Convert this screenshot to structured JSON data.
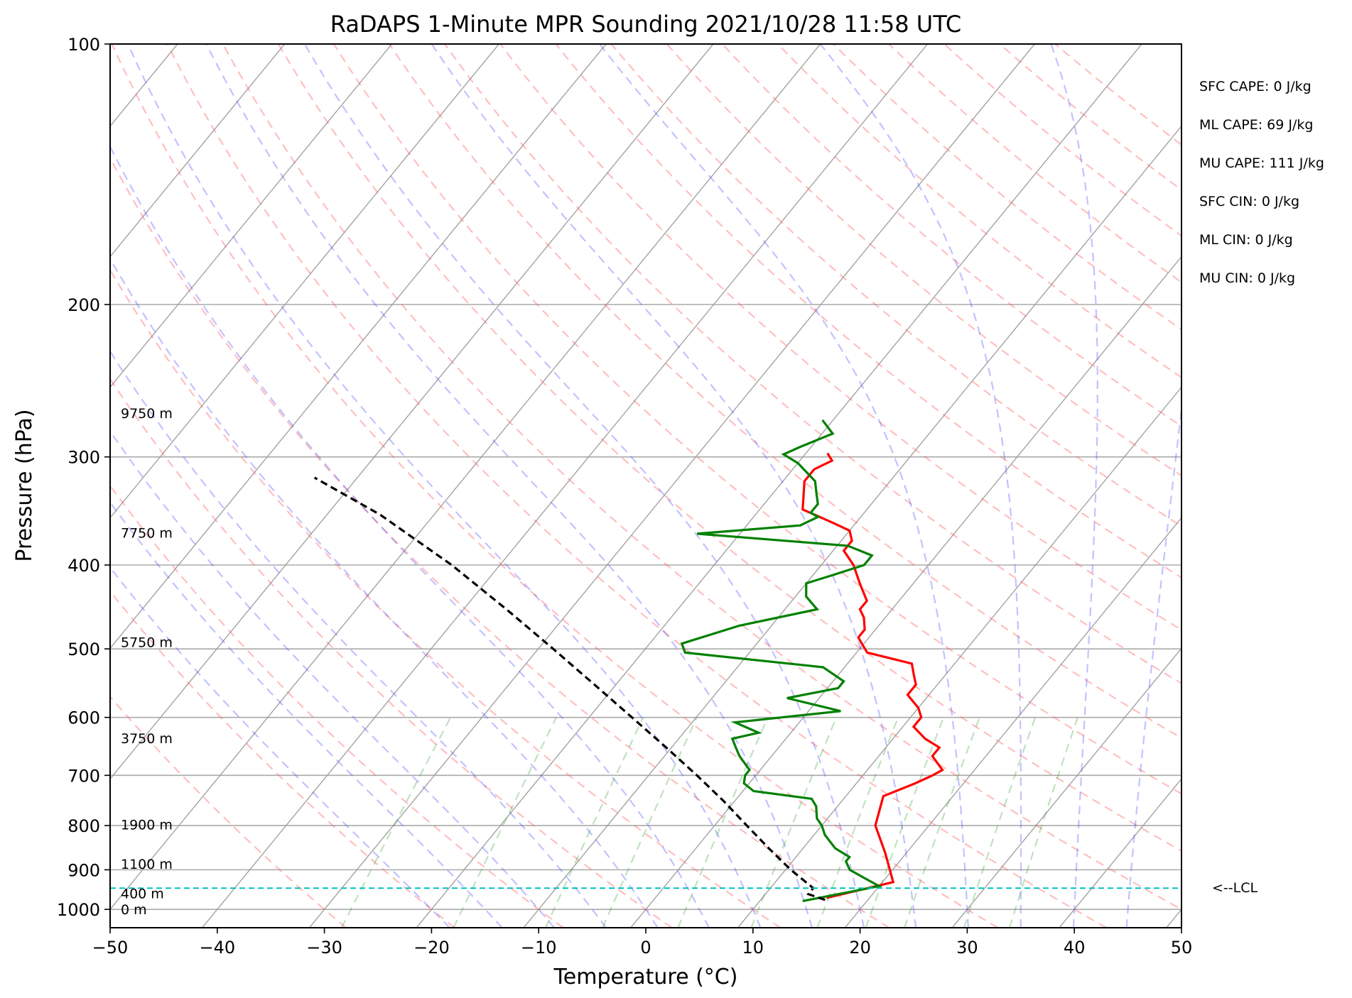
{
  "chart_data": {
    "type": "line",
    "title": "RaDAPS 1-Minute MPR Sounding 2021/10/28 11:58 UTC",
    "xlabel": "Temperature (°C)",
    "ylabel": "Pressure (hPa)",
    "xlim": [
      -50,
      50
    ],
    "ylim": [
      1050,
      100
    ],
    "y_scale": "log",
    "x_ticks": [
      -50,
      -40,
      -30,
      -20,
      -10,
      0,
      10,
      20,
      30,
      40,
      50
    ],
    "x_tick_labels": [
      "−50",
      "−40",
      "−30",
      "−20",
      "−10",
      "0",
      "10",
      "20",
      "30",
      "40",
      "50"
    ],
    "y_ticks": [
      100,
      200,
      300,
      400,
      500,
      600,
      700,
      800,
      900,
      1000
    ],
    "y_tick_labels": [
      "100",
      "200",
      "300",
      "400",
      "500",
      "600",
      "700",
      "800",
      "900",
      "1000"
    ],
    "grid": true,
    "skew": true,
    "series": [
      {
        "color": "#ff0000",
        "points": [
          [
            16,
            970
          ],
          [
            21,
            930
          ],
          [
            18,
            860
          ],
          [
            15,
            800
          ],
          [
            13.5,
            740
          ],
          [
            15.5,
            715
          ],
          [
            16.5,
            700
          ],
          [
            17,
            690
          ],
          [
            15,
            665
          ],
          [
            15,
            650
          ],
          [
            13,
            635
          ],
          [
            11,
            615
          ],
          [
            11,
            600
          ],
          [
            10,
            585
          ],
          [
            8,
            565
          ],
          [
            8,
            550
          ],
          [
            7,
            535
          ],
          [
            6,
            520
          ],
          [
            1,
            505
          ],
          [
            0,
            495
          ],
          [
            -1,
            485
          ],
          [
            -1,
            475
          ],
          [
            -2,
            460
          ],
          [
            -3,
            450
          ],
          [
            -3,
            440
          ],
          [
            -5,
            420
          ],
          [
            -7,
            400
          ],
          [
            -9,
            385
          ],
          [
            -9,
            375
          ],
          [
            -10,
            365
          ],
          [
            -12,
            358
          ],
          [
            -16,
            345
          ],
          [
            -18,
            320
          ],
          [
            -18,
            310
          ],
          [
            -17,
            303
          ],
          [
            -18,
            297
          ]
        ]
      },
      {
        "color": "#008000",
        "points": [
          [
            14,
            978
          ],
          [
            20,
            940
          ],
          [
            18,
            920
          ],
          [
            16,
            900
          ],
          [
            15,
            880
          ],
          [
            15,
            870
          ],
          [
            13,
            850
          ],
          [
            12,
            835
          ],
          [
            11,
            820
          ],
          [
            10,
            800
          ],
          [
            9,
            785
          ],
          [
            8,
            760
          ],
          [
            7,
            745
          ],
          [
            1,
            730
          ],
          [
            -0.5,
            715
          ],
          [
            -1,
            700
          ],
          [
            -1,
            690
          ],
          [
            -3,
            665
          ],
          [
            -4,
            650
          ],
          [
            -5,
            635
          ],
          [
            -3,
            625
          ],
          [
            -6,
            608
          ],
          [
            3,
            590
          ],
          [
            -3,
            570
          ],
          [
            1,
            555
          ],
          [
            1,
            545
          ],
          [
            -2,
            525
          ],
          [
            -16,
            505
          ],
          [
            -17,
            493
          ],
          [
            -13,
            470
          ],
          [
            -7,
            450
          ],
          [
            -9,
            435
          ],
          [
            -10,
            420
          ],
          [
            -8,
            410
          ],
          [
            -6,
            400
          ],
          [
            -6,
            390
          ],
          [
            -9,
            380
          ],
          [
            -24,
            368
          ],
          [
            -15,
            360
          ],
          [
            -14,
            352
          ],
          [
            -15,
            348
          ],
          [
            -15,
            340
          ],
          [
            -16,
            330
          ],
          [
            -17,
            320
          ],
          [
            -20,
            305
          ],
          [
            -22,
            298
          ],
          [
            -21,
            292
          ],
          [
            -19,
            282
          ],
          [
            -21,
            272
          ]
        ]
      },
      {
        "color": "#000000",
        "points": [
          [
            16,
            975
          ],
          [
            14,
            960
          ],
          [
            14,
            945
          ],
          [
            10.5,
            900
          ],
          [
            6.8,
            850
          ],
          [
            3,
            800
          ],
          [
            -1,
            750
          ],
          [
            -5.5,
            700
          ],
          [
            -10.5,
            650
          ],
          [
            -16,
            600
          ],
          [
            -22,
            550
          ],
          [
            -28.6,
            500
          ],
          [
            -36,
            450
          ],
          [
            -44.5,
            400
          ],
          [
            -55,
            350
          ],
          [
            -64,
            317
          ]
        ]
      }
    ],
    "height_labels": [
      "9750 m",
      "7750 m",
      "5750 m",
      "3750 m",
      "1900 m",
      "1100 m",
      "400 m",
      "0 m"
    ],
    "height_label_pressures": [
      267,
      367,
      491,
      634,
      798,
      886,
      958,
      1000
    ],
    "lcl": {
      "pressure": 945,
      "label": "<--LCL",
      "color": "#00bfbf"
    },
    "info_lines": [
      "SFC CAPE: 0 J/kg",
      "ML CAPE: 69 J/kg",
      "MU CAPE: 111 J/kg",
      "SFC CIN: 0 J/kg",
      "ML CIN: 0 J/kg",
      "MU CIN: 0 J/kg"
    ]
  }
}
